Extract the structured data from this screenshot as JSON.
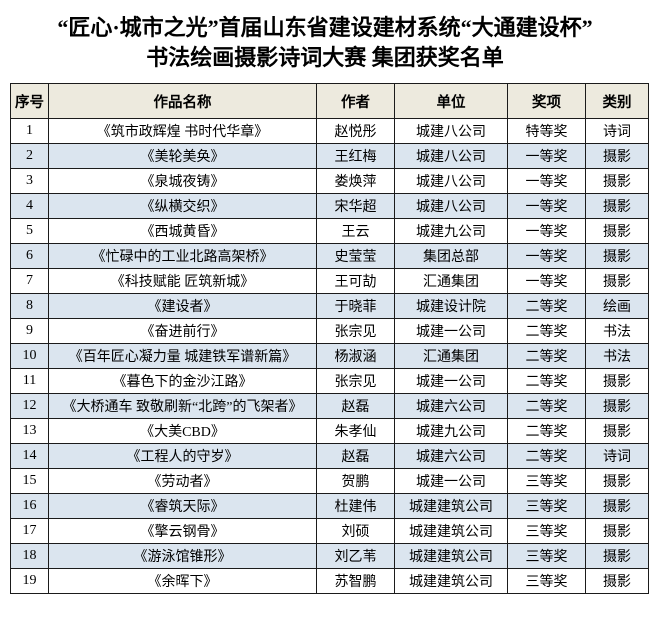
{
  "title": {
    "line1": "“匠心·城市之光”首届山东省建设建材系统“大通建设杯”",
    "line2": "书法绘画摄影诗词大赛 集团获奖名单"
  },
  "table": {
    "headers": [
      "序号",
      "作品名称",
      "作者",
      "单位",
      "奖项",
      "类别"
    ],
    "rows": [
      [
        "1",
        "《筑市政辉煌 书时代华章》",
        "赵悦彤",
        "城建八公司",
        "特等奖",
        "诗词"
      ],
      [
        "2",
        "《美轮美奂》",
        "王红梅",
        "城建八公司",
        "一等奖",
        "摄影"
      ],
      [
        "3",
        "《泉城夜铸》",
        "娄焕萍",
        "城建八公司",
        "一等奖",
        "摄影"
      ],
      [
        "4",
        "《纵横交织》",
        "宋华超",
        "城建八公司",
        "一等奖",
        "摄影"
      ],
      [
        "5",
        "《西城黄昏》",
        "王云",
        "城建九公司",
        "一等奖",
        "摄影"
      ],
      [
        "6",
        "《忙碌中的工业北路高架桥》",
        "史莹莹",
        "集团总部",
        "一等奖",
        "摄影"
      ],
      [
        "7",
        "《科技赋能 匠筑新城》",
        "王可劼",
        "汇通集团",
        "一等奖",
        "摄影"
      ],
      [
        "8",
        "《建设者》",
        "于晓菲",
        "城建设计院",
        "二等奖",
        "绘画"
      ],
      [
        "9",
        "《奋进前行》",
        "张宗见",
        "城建一公司",
        "二等奖",
        "书法"
      ],
      [
        "10",
        "《百年匠心凝力量 城建铁军谱新篇》",
        "杨淑涵",
        "汇通集团",
        "二等奖",
        "书法"
      ],
      [
        "11",
        "《暮色下的金沙江路》",
        "张宗见",
        "城建一公司",
        "二等奖",
        "摄影"
      ],
      [
        "12",
        "《大桥通车 致敬刷新“北跨”的飞架者》",
        "赵磊",
        "城建六公司",
        "二等奖",
        "摄影"
      ],
      [
        "13",
        "《大美CBD》",
        "朱孝仙",
        "城建九公司",
        "二等奖",
        "摄影"
      ],
      [
        "14",
        "《工程人的守岁》",
        "赵磊",
        "城建六公司",
        "二等奖",
        "诗词"
      ],
      [
        "15",
        "《劳动者》",
        "贺鹏",
        "城建一公司",
        "三等奖",
        "摄影"
      ],
      [
        "16",
        "《睿筑天际》",
        "杜建伟",
        "城建建筑公司",
        "三等奖",
        "摄影"
      ],
      [
        "17",
        "《擎云钢骨》",
        "刘硕",
        "城建建筑公司",
        "三等奖",
        "摄影"
      ],
      [
        "18",
        "《游泳馆锥形》",
        "刘乙苇",
        "城建建筑公司",
        "三等奖",
        "摄影"
      ],
      [
        "19",
        "《余晖下》",
        "苏智鹏",
        "城建建筑公司",
        "三等奖",
        "摄影"
      ]
    ]
  },
  "colors": {
    "header_bg": "#edeade",
    "row_alt_bg": "#dbe5ef",
    "row_bg": "#ffffff",
    "border": "#1b1b1b",
    "text": "#000000"
  }
}
